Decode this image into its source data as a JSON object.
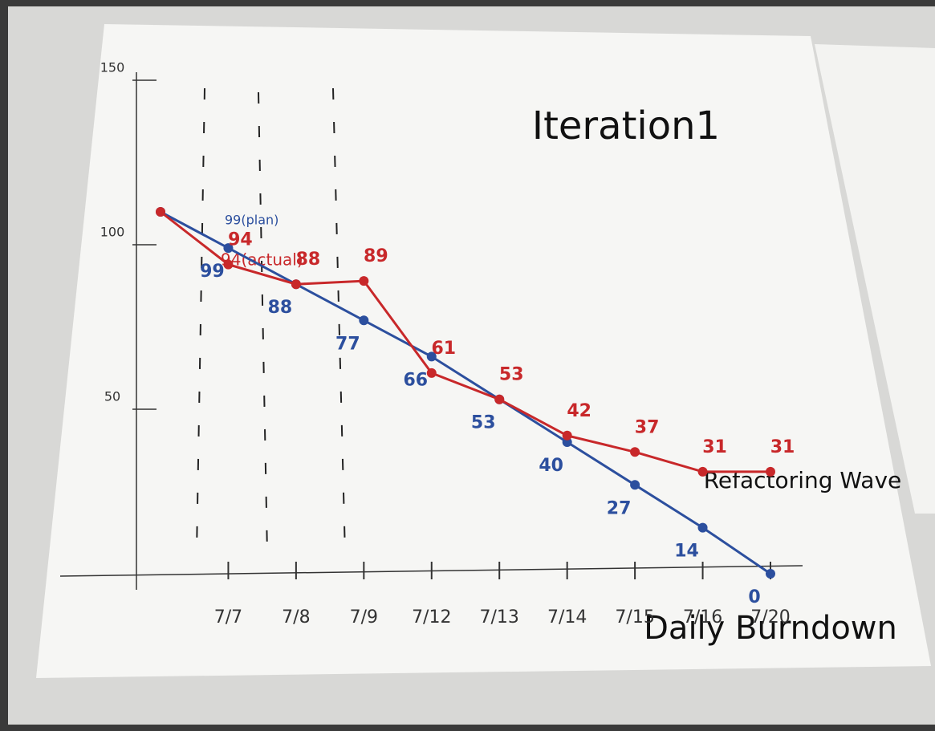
{
  "chart_data": {
    "type": "line",
    "title": "Iteration1",
    "x_label": "Daily Burndown",
    "categories": [
      null,
      "7/7",
      "7/8",
      "7/9",
      "7/12",
      "7/13",
      "7/14",
      "7/15",
      "7/16",
      "7/20"
    ],
    "series": [
      {
        "color": "#2c4f9e",
        "values": [
          110,
          99,
          88,
          77,
          66,
          53,
          40,
          27,
          14,
          0
        ]
      },
      {
        "color": "#c8282a",
        "values": [
          110,
          94,
          88,
          89,
          61,
          53,
          42,
          37,
          31,
          31
        ]
      }
    ],
    "ylim": [
      0,
      150
    ],
    "yticks": [
      50,
      100,
      150
    ],
    "annotations": [
      "99(plan)",
      "94(actual)",
      "Refactoring Wave"
    ]
  }
}
